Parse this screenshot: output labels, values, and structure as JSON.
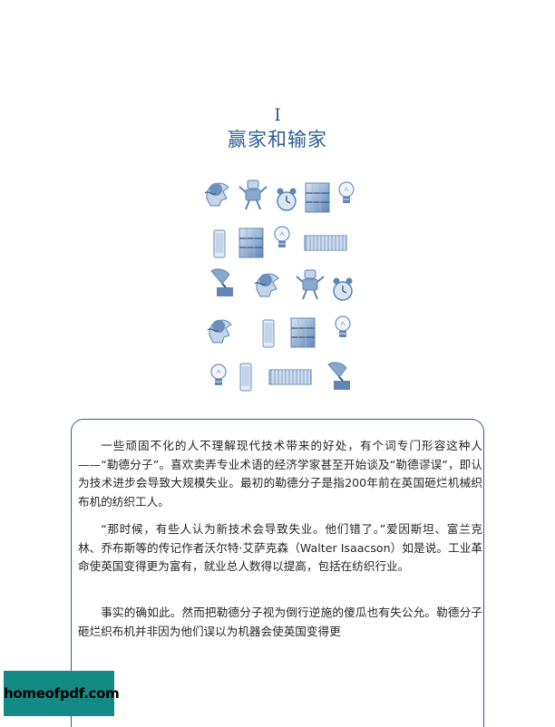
{
  "chapter": {
    "number": "I",
    "title": "赢家和输家"
  },
  "illustration": {
    "rows": [
      [
        "wearable-tech-head-icon",
        "robot-icon",
        "alarm-clock-icon",
        "bookshelf-icon",
        "light-bulb-icon"
      ],
      [
        "smartphone-icon",
        "bookshelf-icon",
        "light-bulb-icon",
        "shipping-container-icon"
      ],
      [
        "gramophone-icon",
        "wearable-tech-head-icon",
        "robot-icon",
        "alarm-clock-icon"
      ],
      [
        "wearable-tech-head-icon",
        "smartphone-icon",
        "bookshelf-icon",
        "light-bulb-icon"
      ],
      [
        "light-bulb-icon",
        "smartphone-icon",
        "shipping-container-icon",
        "gramophone-icon"
      ]
    ],
    "color": "#5f86b7"
  },
  "body": {
    "paragraphs": [
      "一些顽固不化的人不理解现代技术带来的好处，有个词专门形容这种人——“勒德分子”。喜欢卖弄专业术语的经济学家甚至开始谈及“勒德谬误”，即认为技术进步会导致大规模失业。最初的勒德分子是指200年前在英国砸烂机械织布机的纺织工人。",
      "“那时候，有些人认为新技术会导致失业。他们错了。”爱因斯坦、富兰克林、乔布斯等的传记作者沃尔特·艾萨克森（Walter Isaacson）如是说。工业革命使英国变得更为富有，就业总人数得以提高，包括在纺织行业。",
      "事实的确如此。然而把勒德分子视为倒行逆施的傻瓜也有失公允。勒德分子砸烂织布机并非因为他们误以为机器会使英国变得更"
    ]
  },
  "watermark": {
    "text": "homeofpdf.com"
  },
  "colors": {
    "accent": "#2c5f97",
    "watermark_bg": "#138a86"
  }
}
